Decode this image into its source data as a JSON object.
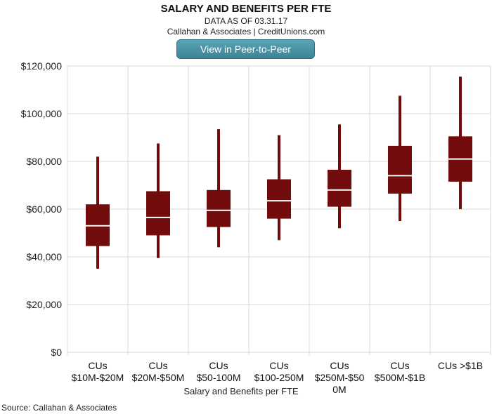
{
  "header": {
    "title": "SALARY AND BENEFITS PER FTE",
    "subtitle": "DATA AS OF 03.31.17",
    "credit": "Callahan & Associates | CreditUnions.com",
    "button_label": "View in Peer-to-Peer"
  },
  "footer": {
    "source": "Source: Callahan & Associates"
  },
  "colors": {
    "box": "#720b0b",
    "median": "#ffffff",
    "grid": "#d9d9d9",
    "button": "#4592a5"
  },
  "chart_data": {
    "type": "boxplot",
    "xlabel": "Salary and Benefits per FTE",
    "ylabel": "",
    "ylim": [
      0,
      120000
    ],
    "yticks": [
      0,
      20000,
      40000,
      60000,
      80000,
      100000,
      120000
    ],
    "ytick_labels": [
      "$0",
      "$20,000",
      "$40,000",
      "$60,000",
      "$80,000",
      "$100,000",
      "$120,000"
    ],
    "grid": true,
    "categories": [
      [
        "CUs",
        "$10M-$20M"
      ],
      [
        "CUs",
        "$20M-$50M"
      ],
      [
        "CUs",
        "$50-100M"
      ],
      [
        "CUs",
        "$100-250M"
      ],
      [
        "CUs",
        "$250M-$50",
        "0M"
      ],
      [
        "CUs",
        "$500M-$1B"
      ],
      [
        "CUs >$1B"
      ]
    ],
    "series": [
      {
        "min": 35000,
        "q1": 44500,
        "median": 53000,
        "q3": 62000,
        "max": 82000
      },
      {
        "min": 39500,
        "q1": 49000,
        "median": 56500,
        "q3": 67500,
        "max": 87500
      },
      {
        "min": 44000,
        "q1": 52500,
        "median": 59500,
        "q3": 68000,
        "max": 93500
      },
      {
        "min": 47000,
        "q1": 56000,
        "median": 63500,
        "q3": 72500,
        "max": 91000
      },
      {
        "min": 52000,
        "q1": 61000,
        "median": 68000,
        "q3": 76500,
        "max": 95500
      },
      {
        "min": 55000,
        "q1": 66500,
        "median": 74000,
        "q3": 86500,
        "max": 107500
      },
      {
        "min": 60000,
        "q1": 71500,
        "median": 81000,
        "q3": 90500,
        "max": 115500
      }
    ]
  }
}
